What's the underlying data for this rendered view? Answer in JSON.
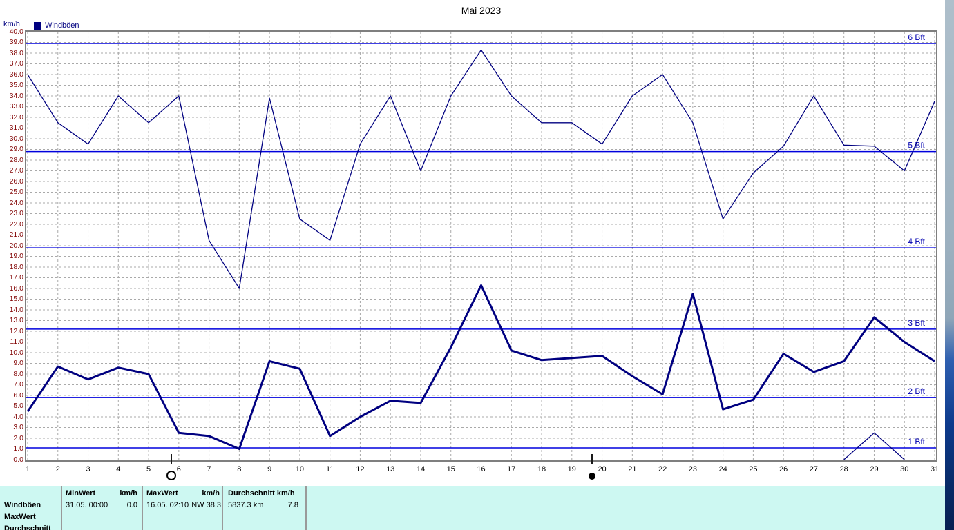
{
  "title": "Mai 2023",
  "y_axis_unit": "km/h",
  "legend": {
    "label": "Windböen",
    "color": "#000080"
  },
  "chart_data": {
    "type": "line",
    "title": "Mai 2023",
    "ylabel": "km/h",
    "xlabel": "",
    "ylim": [
      0,
      40
    ],
    "y_tick_step": 1,
    "x": [
      1,
      2,
      3,
      4,
      5,
      6,
      7,
      8,
      9,
      10,
      11,
      12,
      13,
      14,
      15,
      16,
      17,
      18,
      19,
      20,
      21,
      22,
      23,
      24,
      25,
      26,
      27,
      28,
      29,
      30,
      31
    ],
    "grid": true,
    "series": [
      {
        "name": "Windböen Maximum",
        "style": "thin",
        "values": [
          36.0,
          31.5,
          29.5,
          34.0,
          31.5,
          34.0,
          20.5,
          16.0,
          33.8,
          22.5,
          20.5,
          29.5,
          34.0,
          27.0,
          34.0,
          38.3,
          34.0,
          31.5,
          31.5,
          29.5,
          34.0,
          36.0,
          31.5,
          22.5,
          26.8,
          29.3,
          34.0,
          29.4,
          29.3,
          27.0,
          33.5
        ]
      },
      {
        "name": "Windböen Durchschnitt",
        "style": "thick",
        "values": [
          4.5,
          8.7,
          7.5,
          8.6,
          8.0,
          2.5,
          2.2,
          1.0,
          9.2,
          8.5,
          2.2,
          4.0,
          5.5,
          5.3,
          10.5,
          16.3,
          10.2,
          9.3,
          9.5,
          9.7,
          7.8,
          6.1,
          15.5,
          4.7,
          5.6,
          9.9,
          8.2,
          9.2,
          13.3,
          11.0,
          9.2
        ]
      },
      {
        "name": "Windböen Minimum",
        "style": "thin",
        "values": [
          null,
          null,
          null,
          null,
          null,
          null,
          null,
          null,
          null,
          null,
          null,
          null,
          null,
          null,
          null,
          null,
          null,
          null,
          null,
          null,
          null,
          null,
          null,
          null,
          null,
          null,
          null,
          0.0,
          2.5,
          0.0,
          null
        ]
      }
    ],
    "beaufort_lines": [
      {
        "label": "1 Bft",
        "value": 1.1
      },
      {
        "label": "2 Bft",
        "value": 5.8
      },
      {
        "label": "3 Bft",
        "value": 12.2
      },
      {
        "label": "4 Bft",
        "value": 19.8
      },
      {
        "label": "5 Bft",
        "value": 28.8
      },
      {
        "label": "6 Bft",
        "value": 38.9
      }
    ],
    "moon_markers": [
      {
        "type": "full-moon",
        "day": 5.75
      },
      {
        "type": "new-moon",
        "day": 19.66
      }
    ],
    "line_color": "#000080",
    "beaufort_color": "#0000dd",
    "beaufort_label_color": "#0000b0"
  },
  "table": {
    "row_labels": [
      "Windböen",
      "MaxWert",
      "Durchschnitt"
    ],
    "columns": [
      {
        "label": "MinWert",
        "unit": "km/h",
        "date": "31.05.  00:00",
        "value": "0.0"
      },
      {
        "label": "MaxWert",
        "unit": "km/h",
        "date": "16.05.  02:10",
        "value": "NW 38.3"
      },
      {
        "label": "Durchschnitt km/h",
        "unit": "",
        "date": "5837.3 km",
        "value": "7.8"
      }
    ]
  }
}
